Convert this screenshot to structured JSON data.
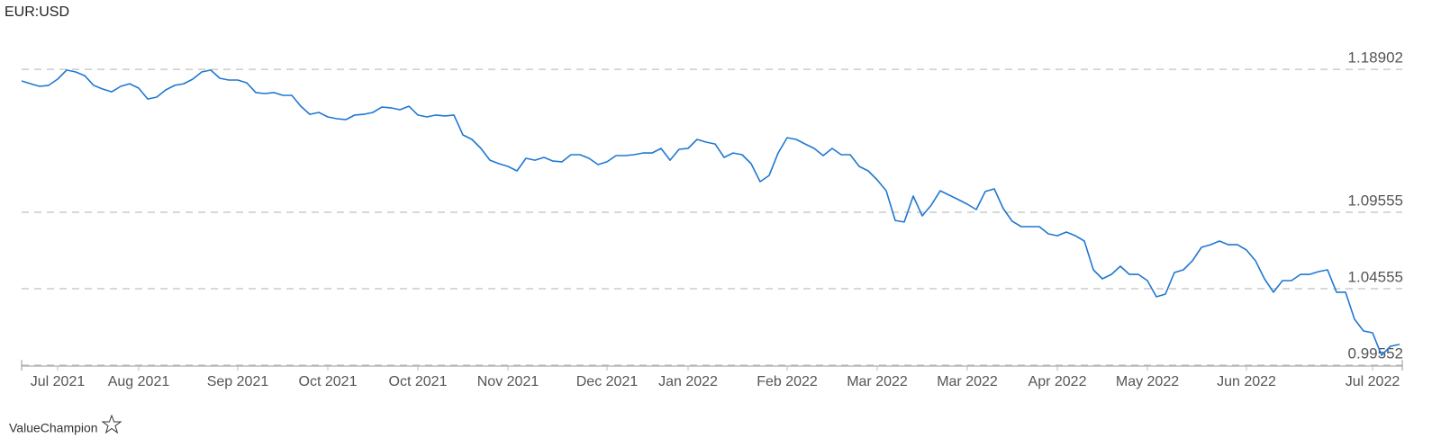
{
  "chart_data": {
    "type": "line",
    "title": "EUR:USD",
    "footer": "ValueChampion",
    "series": [
      {
        "name": "EUR:USD",
        "color": "#1f78d1",
        "values": [
          1.1814,
          1.1796,
          1.1779,
          1.1785,
          1.1826,
          1.1885,
          1.1873,
          1.1849,
          1.1785,
          1.1761,
          1.1743,
          1.1779,
          1.1796,
          1.1767,
          1.1696,
          1.1708,
          1.1755,
          1.1785,
          1.1796,
          1.1826,
          1.1873,
          1.1885,
          1.1832,
          1.182,
          1.182,
          1.1802,
          1.1738,
          1.1732,
          1.1738,
          1.172,
          1.172,
          1.1649,
          1.1596,
          1.1608,
          1.1579,
          1.1567,
          1.1561,
          1.1591,
          1.1596,
          1.1608,
          1.1643,
          1.1638,
          1.1626,
          1.1649,
          1.1591,
          1.1579,
          1.1591,
          1.1585,
          1.1591,
          1.1461,
          1.1432,
          1.1373,
          1.1296,
          1.1273,
          1.1255,
          1.1226,
          1.1308,
          1.1296,
          1.1314,
          1.129,
          1.1285,
          1.1332,
          1.1332,
          1.1308,
          1.1267,
          1.1285,
          1.1326,
          1.1326,
          1.1332,
          1.1343,
          1.1343,
          1.1373,
          1.1296,
          1.1367,
          1.1373,
          1.1432,
          1.1414,
          1.1402,
          1.1314,
          1.1343,
          1.1332,
          1.1273,
          1.1155,
          1.1196,
          1.1343,
          1.1443,
          1.1432,
          1.1402,
          1.1373,
          1.1326,
          1.1373,
          1.1332,
          1.1332,
          1.1255,
          1.1226,
          1.1167,
          1.1096,
          1.0902,
          1.0891,
          1.1061,
          1.0932,
          1.1002,
          1.1096,
          1.1067,
          1.1038,
          1.1008,
          1.0973,
          1.1091,
          1.1108,
          1.0979,
          1.0896,
          1.0861,
          1.0861,
          1.0861,
          1.0814,
          1.0802,
          1.0826,
          1.0802,
          1.0767,
          1.0579,
          1.052,
          1.0549,
          1.0602,
          1.0549,
          1.0549,
          1.0508,
          1.0402,
          1.042,
          1.0561,
          1.0579,
          1.0638,
          1.0726,
          1.0743,
          1.0767,
          1.0743,
          1.0743,
          1.0708,
          1.0638,
          1.052,
          1.0432,
          1.0508,
          1.0508,
          1.0549,
          1.0549,
          1.0567,
          1.0579,
          1.0432,
          1.0432,
          1.0255,
          1.0179,
          1.0167,
          1.002,
          1.0079,
          1.0091
        ]
      }
    ],
    "xlim": [
      0,
      153
    ],
    "xticks": [
      {
        "value": 4,
        "label": "Jul 2021"
      },
      {
        "value": 13,
        "label": "Aug 2021"
      },
      {
        "value": 24,
        "label": "Sep 2021"
      },
      {
        "value": 34,
        "label": "Oct 2021"
      },
      {
        "value": 44,
        "label": "Oct 2021"
      },
      {
        "value": 54,
        "label": "Nov 2021"
      },
      {
        "value": 65,
        "label": "Dec 2021"
      },
      {
        "value": 74,
        "label": "Jan 2022"
      },
      {
        "value": 85,
        "label": "Feb 2022"
      },
      {
        "value": 95,
        "label": "Mar 2022"
      },
      {
        "value": 105,
        "label": "Mar 2022"
      },
      {
        "value": 115,
        "label": "Apr 2022"
      },
      {
        "value": 125,
        "label": "May 2022"
      },
      {
        "value": 136,
        "label": "Jun 2022"
      },
      {
        "value": 150,
        "label": "Jul 2022"
      }
    ],
    "ylim": [
      0.99552,
      1.21
    ],
    "yticks": [
      0.99552,
      1.04555,
      1.09555,
      1.18902
    ],
    "grid": true
  }
}
